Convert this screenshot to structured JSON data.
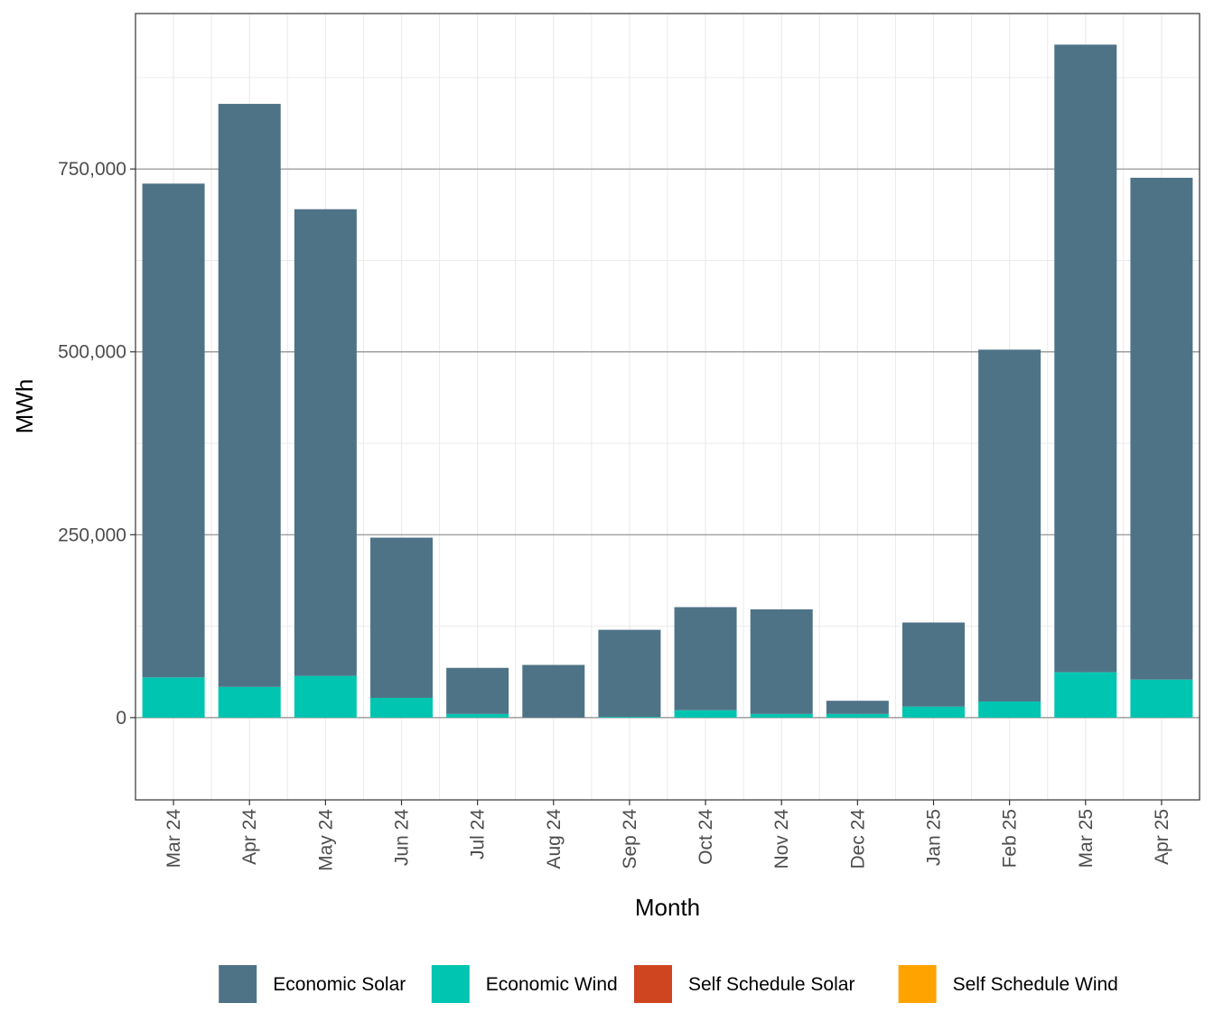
{
  "chart_data": {
    "type": "bar",
    "stacked": true,
    "title": "",
    "xlabel": "Month",
    "ylabel": "MWh",
    "ylim": [
      -112500,
      962500
    ],
    "y_ticks": [
      0,
      250000,
      500000,
      750000
    ],
    "y_tick_labels": [
      "0",
      "250,000",
      "500,000",
      "750,000"
    ],
    "grid": true,
    "legend_position": "bottom",
    "categories": [
      "Mar 24",
      "Apr 24",
      "May 24",
      "Jun 24",
      "Jul 24",
      "Aug 24",
      "Sep 24",
      "Oct 24",
      "Nov 24",
      "Dec 24",
      "Jan 25",
      "Feb 25",
      "Mar 25",
      "Apr 25"
    ],
    "series": [
      {
        "name": "Economic Wind",
        "color": "#00C5B0",
        "values": [
          55000,
          42000,
          57000,
          27000,
          5000,
          0,
          1000,
          10000,
          5000,
          5000,
          15000,
          22000,
          62000,
          52000
        ]
      },
      {
        "name": "Economic Solar",
        "color": "#4E7387",
        "values": [
          675000,
          797000,
          638000,
          219000,
          63000,
          72000,
          119000,
          141000,
          143000,
          18000,
          115000,
          481000,
          858000,
          686000
        ]
      },
      {
        "name": "Self Schedule Solar",
        "color": "#CF4520",
        "values": [
          0,
          0,
          0,
          0,
          0,
          0,
          0,
          0,
          0,
          0,
          0,
          0,
          0,
          0
        ]
      },
      {
        "name": "Self Schedule Wind",
        "color": "#FFA300",
        "values": [
          0,
          0,
          0,
          0,
          0,
          0,
          0,
          0,
          0,
          0,
          0,
          0,
          0,
          0
        ]
      }
    ],
    "legend_order": [
      "Economic Solar",
      "Economic Wind",
      "Self Schedule Solar",
      "Self Schedule Wind"
    ]
  }
}
